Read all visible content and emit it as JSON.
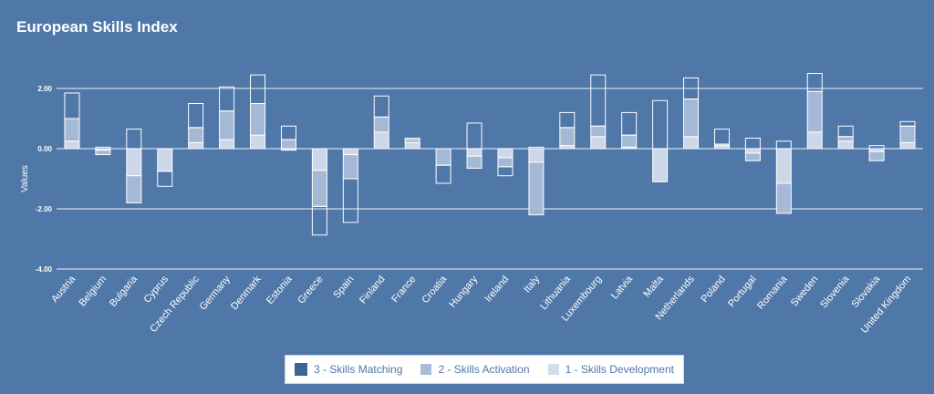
{
  "chart_data": {
    "type": "bar",
    "title": "European Skills Index",
    "ylabel": "Values",
    "xlabel": "",
    "ylim": [
      -4,
      3
    ],
    "yticks": [
      2,
      0,
      -2,
      -4
    ],
    "ytick_labels": [
      "2.00",
      "0.00",
      "-2.00",
      "-4.00"
    ],
    "categories": [
      "Austria",
      "Belgium",
      "Bulgaria",
      "Cyprus",
      "Czech Republic",
      "Germany",
      "Denmark",
      "Estonia",
      "Greece",
      "Spain",
      "Finland",
      "France",
      "Croatia",
      "Hungary",
      "Ireland",
      "Italy",
      "Lithuania",
      "Luxembourg",
      "Latvia",
      "Malta",
      "Netherlands",
      "Poland",
      "Portugal",
      "Romania",
      "Sweden",
      "Slovenia",
      "Slovakia",
      "United Kingdom"
    ],
    "series": [
      {
        "name": "1 - Skills Development",
        "color": "#cfd9e6",
        "values": [
          0.25,
          -0.05,
          -0.9,
          -0.75,
          0.2,
          0.3,
          0.45,
          -0.05,
          -0.72,
          -0.2,
          0.55,
          0.2,
          0.0,
          -0.25,
          -0.3,
          -0.45,
          0.1,
          0.4,
          0.05,
          -1.1,
          0.4,
          0.1,
          -0.15,
          -1.15,
          0.55,
          0.25,
          -0.1,
          0.2
        ]
      },
      {
        "name": "2 - Skills Activation",
        "color": "#a9bdd8",
        "values": [
          0.75,
          -0.15,
          -0.9,
          0.0,
          0.5,
          0.95,
          1.05,
          0.3,
          -1.2,
          -0.8,
          0.5,
          0.1,
          -0.55,
          -0.4,
          -0.3,
          -1.75,
          0.6,
          0.35,
          0.4,
          0.0,
          1.25,
          0.05,
          -0.25,
          -1.0,
          1.35,
          0.15,
          -0.3,
          0.55
        ]
      },
      {
        "name": "3 - Skills Matching",
        "color": "#4f77a8",
        "values": [
          0.85,
          0.05,
          0.65,
          -0.5,
          0.8,
          0.8,
          0.95,
          0.45,
          -0.95,
          -1.45,
          0.7,
          0.05,
          -0.6,
          0.85,
          -0.3,
          0.05,
          0.5,
          1.7,
          0.75,
          1.6,
          0.7,
          0.5,
          0.35,
          0.25,
          0.6,
          0.35,
          0.1,
          0.15
        ]
      }
    ],
    "legend_position": "bottom"
  }
}
